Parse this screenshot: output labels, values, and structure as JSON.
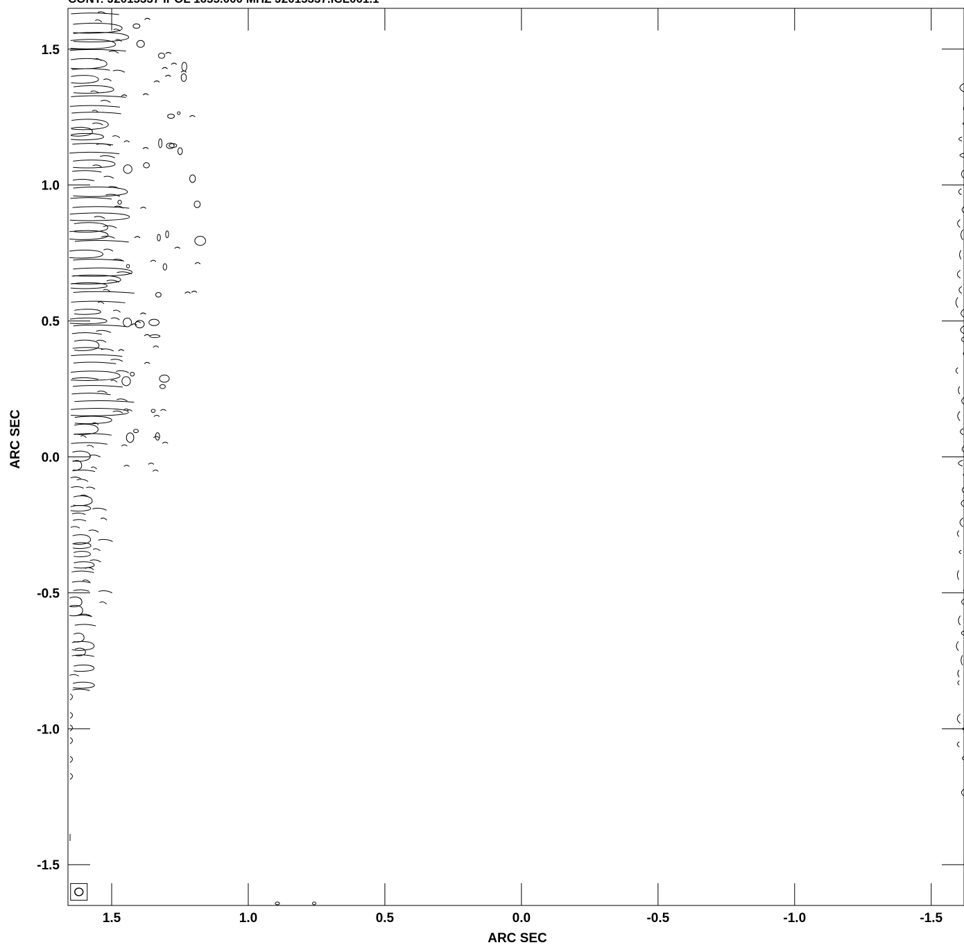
{
  "chart_data": {
    "type": "contour",
    "title": "CONT: J2015337 IPOL 1655.000 MHZ J2015337.ICL001.1",
    "xlabel": "ARC SEC",
    "ylabel": "ARC SEC",
    "xlim": [
      1.66,
      -1.62
    ],
    "ylim": [
      -1.65,
      1.65
    ],
    "x_ticks": [
      1.5,
      1.0,
      0.5,
      0.0,
      -0.5,
      -1.0,
      -1.5
    ],
    "y_ticks": [
      1.5,
      1.0,
      0.5,
      0.0,
      -0.5,
      -1.0,
      -1.5
    ],
    "x_tick_labels": [
      "1.5",
      "1.0",
      "0.5",
      "0.0",
      "-0.5",
      "-1.0",
      "-1.5"
    ],
    "y_tick_labels": [
      "1.5",
      "1.0",
      "0.5",
      "0.0",
      "-0.5",
      "-1.0",
      "-1.5"
    ],
    "beam_marker": {
      "x": 1.62,
      "y": -1.6
    },
    "grid": false
  }
}
